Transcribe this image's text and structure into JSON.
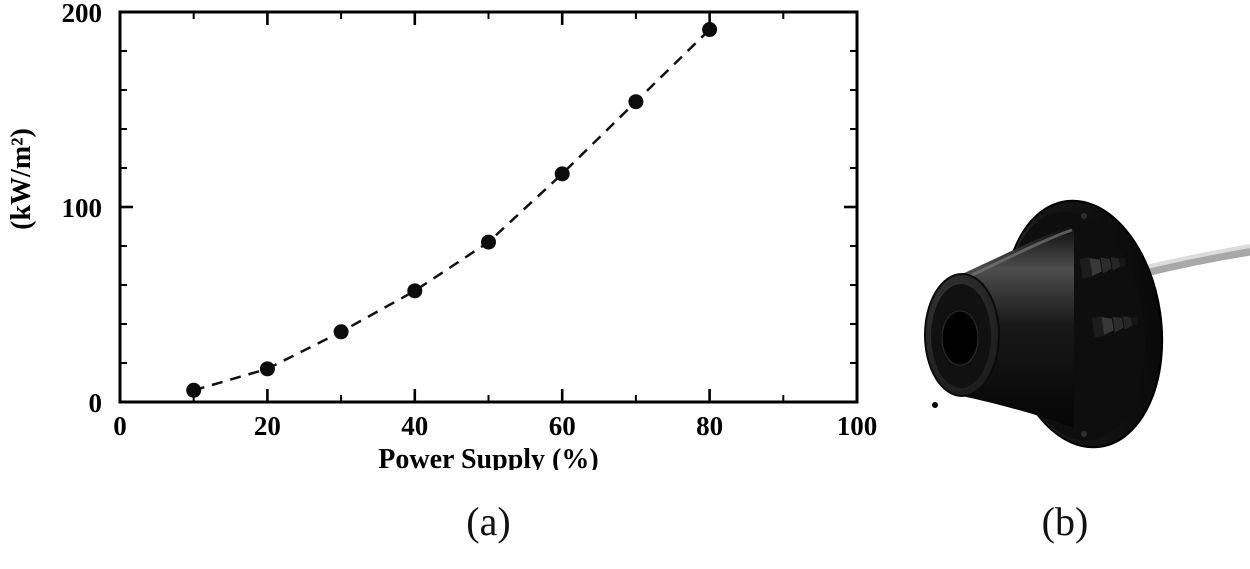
{
  "figure": {
    "panel_a_label": "(a)",
    "panel_b_label": "(b)"
  },
  "chart_data": {
    "type": "scatter",
    "title": "",
    "xlabel": "Power Supply (%)",
    "ylabel": "(kW/m²)",
    "x": [
      10,
      20,
      30,
      40,
      50,
      60,
      70,
      80
    ],
    "y": [
      6,
      17,
      36,
      57,
      82,
      117,
      154,
      191
    ],
    "xlim": [
      0,
      100
    ],
    "ylim": [
      0,
      200
    ],
    "x_major_ticks": [
      0,
      20,
      40,
      60,
      80,
      100
    ],
    "y_major_ticks": [
      0,
      100,
      200
    ],
    "x_minor_step": 10,
    "y_minor_step": 20,
    "line_style": "dashed",
    "marker": "filled-circle",
    "line_color": "#111111",
    "marker_color": "#0c0c0c",
    "grid": false,
    "legend": "none"
  }
}
